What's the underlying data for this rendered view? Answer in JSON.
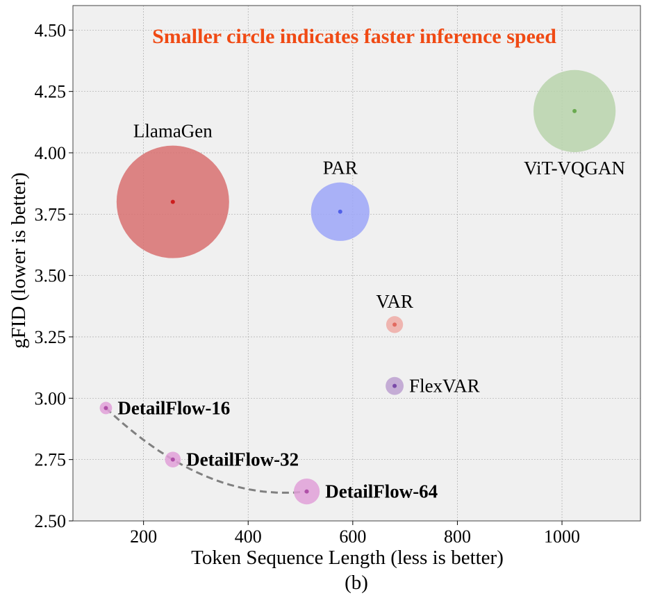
{
  "chart_data": {
    "type": "scatter",
    "title": "Smaller circle indicates faster inference speed",
    "title_color": "#f04a14",
    "xlabel": "Token Sequence Length (less is better)",
    "ylabel": "gFID (lower is better)",
    "caption": "(b)",
    "xlim": [
      65,
      1150
    ],
    "ylim": [
      2.5,
      4.6
    ],
    "xticks": [
      200,
      400,
      600,
      800,
      1000
    ],
    "yticks": [
      2.5,
      2.75,
      3.0,
      3.25,
      3.5,
      3.75,
      4.0,
      4.25,
      4.5
    ],
    "ytick_labels": [
      "2.50",
      "2.75",
      "3.00",
      "3.25",
      "3.50",
      "3.75",
      "4.00",
      "4.25",
      "4.50"
    ],
    "grid": true,
    "points": [
      {
        "name": "LlamaGen",
        "x": 256,
        "y": 3.8,
        "size": 1.0,
        "color": "#d87070",
        "dot": "#cc1e1e",
        "label_pos": "above",
        "bold": false
      },
      {
        "name": "PAR",
        "x": 576,
        "y": 3.76,
        "size": 0.52,
        "color": "#9ca6f8",
        "dot": "#5060e8",
        "label_pos": "above",
        "bold": false
      },
      {
        "name": "ViT-VQGAN",
        "x": 1024,
        "y": 4.17,
        "size": 0.73,
        "color": "#b9d4ac",
        "dot": "#6aaa50",
        "label_pos": "below",
        "bold": false
      },
      {
        "name": "VAR",
        "x": 680,
        "y": 3.3,
        "size": 0.15,
        "color": "#eeaaa4",
        "dot": "#e26a60",
        "label_pos": "above",
        "bold": false
      },
      {
        "name": "FlexVAR",
        "x": 680,
        "y": 3.05,
        "size": 0.16,
        "color": "#bca0d0",
        "dot": "#7a4aa8",
        "label_pos": "right",
        "bold": false
      },
      {
        "name": "DetailFlow-16",
        "x": 128,
        "y": 2.96,
        "size": 0.11,
        "color": "#e0a0d8",
        "dot": "#b050a8",
        "label_pos": "right",
        "bold": true
      },
      {
        "name": "DetailFlow-32",
        "x": 256,
        "y": 2.75,
        "size": 0.14,
        "color": "#e0a0d8",
        "dot": "#b050a8",
        "label_pos": "right",
        "bold": true
      },
      {
        "name": "DetailFlow-64",
        "x": 512,
        "y": 2.62,
        "size": 0.23,
        "color": "#e0a0d8",
        "dot": "#b050a8",
        "label_pos": "right",
        "bold": true
      }
    ],
    "trend_line": {
      "style": "dashed",
      "color": "#808080",
      "x": [
        128,
        256,
        512
      ],
      "y": [
        2.96,
        2.75,
        2.62
      ]
    }
  }
}
